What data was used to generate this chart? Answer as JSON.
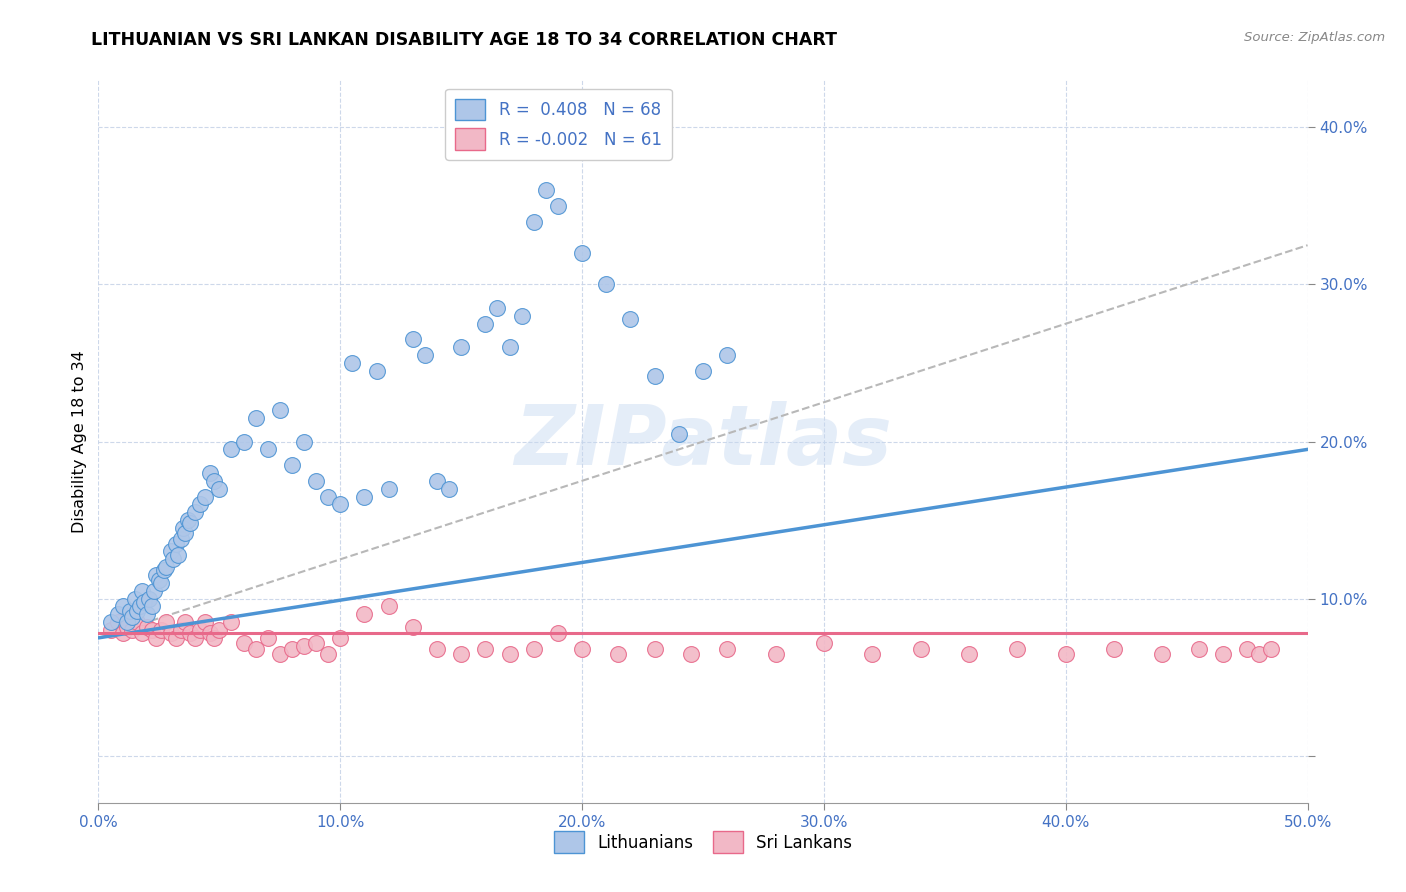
{
  "title": "LITHUANIAN VS SRI LANKAN DISABILITY AGE 18 TO 34 CORRELATION CHART",
  "source": "Source: ZipAtlas.com",
  "ylabel": "Disability Age 18 to 34",
  "xlim": [
    0.0,
    0.5
  ],
  "ylim": [
    -0.03,
    0.43
  ],
  "xticks": [
    0.0,
    0.1,
    0.2,
    0.3,
    0.4,
    0.5
  ],
  "yticks": [
    0.0,
    0.1,
    0.2,
    0.3,
    0.4
  ],
  "xticklabels": [
    "0.0%",
    "10.0%",
    "20.0%",
    "30.0%",
    "40.0%",
    "50.0%"
  ],
  "yticklabels": [
    "",
    "10.0%",
    "20.0%",
    "30.0%",
    "40.0%"
  ],
  "blue_color": "#4d94d4",
  "pink_color": "#e8698a",
  "blue_fill": "#aec6e8",
  "pink_fill": "#f2b8c6",
  "watermark": "ZIPatlas",
  "blue_R": "0.408",
  "blue_N": "68",
  "pink_R": "-0.002",
  "pink_N": "61",
  "blue_scatter_x": [
    0.005,
    0.008,
    0.01,
    0.012,
    0.013,
    0.014,
    0.015,
    0.016,
    0.017,
    0.018,
    0.019,
    0.02,
    0.021,
    0.022,
    0.023,
    0.024,
    0.025,
    0.026,
    0.027,
    0.028,
    0.03,
    0.031,
    0.032,
    0.033,
    0.034,
    0.035,
    0.036,
    0.037,
    0.038,
    0.04,
    0.042,
    0.044,
    0.046,
    0.048,
    0.05,
    0.055,
    0.06,
    0.065,
    0.07,
    0.075,
    0.08,
    0.085,
    0.09,
    0.095,
    0.1,
    0.105,
    0.11,
    0.115,
    0.12,
    0.13,
    0.135,
    0.14,
    0.145,
    0.15,
    0.16,
    0.165,
    0.17,
    0.175,
    0.18,
    0.185,
    0.19,
    0.2,
    0.21,
    0.22,
    0.23,
    0.24,
    0.25,
    0.26
  ],
  "blue_scatter_y": [
    0.085,
    0.09,
    0.095,
    0.085,
    0.092,
    0.088,
    0.1,
    0.092,
    0.095,
    0.105,
    0.098,
    0.09,
    0.1,
    0.095,
    0.105,
    0.115,
    0.112,
    0.11,
    0.118,
    0.12,
    0.13,
    0.125,
    0.135,
    0.128,
    0.138,
    0.145,
    0.142,
    0.15,
    0.148,
    0.155,
    0.16,
    0.165,
    0.18,
    0.175,
    0.17,
    0.195,
    0.2,
    0.215,
    0.195,
    0.22,
    0.185,
    0.2,
    0.175,
    0.165,
    0.16,
    0.25,
    0.165,
    0.245,
    0.17,
    0.265,
    0.255,
    0.175,
    0.17,
    0.26,
    0.275,
    0.285,
    0.26,
    0.28,
    0.34,
    0.36,
    0.35,
    0.32,
    0.3,
    0.278,
    0.242,
    0.205,
    0.245,
    0.255
  ],
  "pink_scatter_x": [
    0.005,
    0.008,
    0.01,
    0.012,
    0.014,
    0.016,
    0.018,
    0.02,
    0.022,
    0.024,
    0.026,
    0.028,
    0.03,
    0.032,
    0.034,
    0.036,
    0.038,
    0.04,
    0.042,
    0.044,
    0.046,
    0.048,
    0.05,
    0.055,
    0.06,
    0.065,
    0.07,
    0.075,
    0.08,
    0.085,
    0.09,
    0.095,
    0.1,
    0.11,
    0.12,
    0.13,
    0.14,
    0.15,
    0.16,
    0.17,
    0.18,
    0.19,
    0.2,
    0.215,
    0.23,
    0.245,
    0.26,
    0.28,
    0.3,
    0.32,
    0.34,
    0.36,
    0.38,
    0.4,
    0.42,
    0.44,
    0.455,
    0.465,
    0.475,
    0.48,
    0.485
  ],
  "pink_scatter_y": [
    0.08,
    0.085,
    0.078,
    0.082,
    0.08,
    0.085,
    0.078,
    0.082,
    0.08,
    0.075,
    0.08,
    0.085,
    0.078,
    0.075,
    0.08,
    0.085,
    0.078,
    0.075,
    0.08,
    0.085,
    0.078,
    0.075,
    0.08,
    0.085,
    0.072,
    0.068,
    0.075,
    0.065,
    0.068,
    0.07,
    0.072,
    0.065,
    0.075,
    0.09,
    0.095,
    0.082,
    0.068,
    0.065,
    0.068,
    0.065,
    0.068,
    0.078,
    0.068,
    0.065,
    0.068,
    0.065,
    0.068,
    0.065,
    0.072,
    0.065,
    0.068,
    0.065,
    0.068,
    0.065,
    0.068,
    0.065,
    0.068,
    0.065,
    0.068,
    0.065,
    0.068
  ],
  "blue_line_x": [
    0.0,
    0.5
  ],
  "blue_line_y": [
    0.075,
    0.195
  ],
  "pink_line_x": [
    0.0,
    0.5
  ],
  "pink_line_y": [
    0.078,
    0.078
  ],
  "dashed_line_x": [
    0.0,
    0.5
  ],
  "dashed_line_y": [
    0.075,
    0.325
  ]
}
